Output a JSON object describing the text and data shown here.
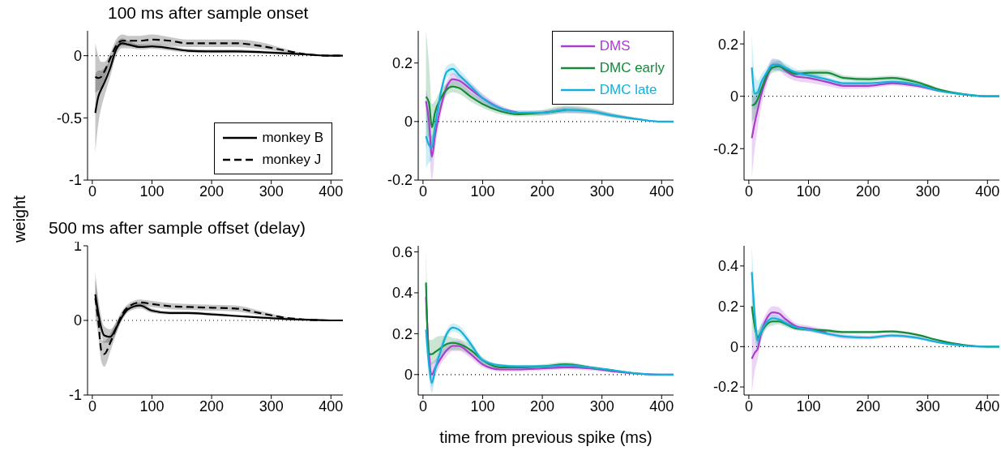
{
  "chart_data": [
    {
      "type": "line",
      "title": "100 ms after sample onset",
      "ylabel": "weight",
      "x": [
        5,
        10,
        15,
        20,
        30,
        40,
        50,
        60,
        80,
        100,
        130,
        160,
        200,
        240,
        280,
        320,
        360,
        400,
        420
      ],
      "xlim": [
        -8,
        420
      ],
      "xticks": [
        0,
        100,
        200,
        300,
        400
      ],
      "ylim": [
        -1,
        0.2
      ],
      "yticks": [
        -1,
        -0.5,
        0
      ],
      "legend": "bottom right",
      "marker": "none",
      "ref_lines": [
        {
          "axis": "y",
          "value": 0,
          "line_style": "dotted",
          "color": "#000000"
        }
      ],
      "series": [
        {
          "name": "monkey B",
          "color": "#000000",
          "line_style": "solid",
          "values": [
            -0.46,
            -0.33,
            -0.27,
            -0.22,
            -0.1,
            0.05,
            0.1,
            0.09,
            0.07,
            0.075,
            0.06,
            0.04,
            0.035,
            0.035,
            0.03,
            0.02,
            0.01,
            0,
            0
          ],
          "lower": [
            -0.78,
            -0.55,
            -0.42,
            -0.33,
            -0.17,
            0.0,
            0.06,
            0.06,
            0.05,
            0.055,
            0.04,
            0.025,
            0.02,
            0.02,
            0.018,
            0.01,
            0.005,
            0,
            0
          ],
          "upper": [
            -0.15,
            -0.12,
            -0.12,
            -0.1,
            -0.03,
            0.1,
            0.14,
            0.12,
            0.09,
            0.095,
            0.08,
            0.055,
            0.05,
            0.05,
            0.042,
            0.03,
            0.015,
            0,
            0
          ]
        },
        {
          "name": "monkey J",
          "color": "#000000",
          "line_style": "dashed",
          "values": [
            -0.17,
            -0.18,
            -0.17,
            -0.13,
            -0.02,
            0.08,
            0.12,
            0.12,
            0.12,
            0.13,
            0.12,
            0.1,
            0.1,
            0.1,
            0.08,
            0.045,
            0.01,
            0,
            0
          ],
          "lower": [
            -0.3,
            -0.28,
            -0.26,
            -0.2,
            -0.06,
            0.04,
            0.08,
            0.08,
            0.08,
            0.09,
            0.08,
            0.07,
            0.07,
            0.07,
            0.055,
            0.03,
            0.005,
            0,
            0
          ],
          "upper": [
            0.1,
            0.0,
            -0.05,
            -0.05,
            0.02,
            0.13,
            0.17,
            0.16,
            0.16,
            0.17,
            0.15,
            0.13,
            0.13,
            0.13,
            0.11,
            0.06,
            0.015,
            0,
            0
          ]
        }
      ]
    },
    {
      "type": "line",
      "x": [
        5,
        10,
        15,
        20,
        30,
        40,
        50,
        60,
        80,
        100,
        130,
        160,
        200,
        240,
        280,
        320,
        360,
        400,
        420
      ],
      "xlim": [
        -8,
        420
      ],
      "xticks": [
        0,
        100,
        200,
        300,
        400
      ],
      "ylim": [
        -0.2,
        0.31
      ],
      "yticks": [
        -0.2,
        0,
        0.2
      ],
      "legend": "top right",
      "marker": "none",
      "ref_lines": [
        {
          "axis": "y",
          "value": 0,
          "line_style": "dotted",
          "color": "#000000"
        }
      ],
      "series": [
        {
          "name": "DMS",
          "color": "#a83fcc",
          "values": [
            0.07,
            0.0,
            -0.12,
            -0.05,
            0.05,
            0.12,
            0.145,
            0.14,
            0.11,
            0.08,
            0.045,
            0.03,
            null,
            null,
            null,
            null,
            null,
            null,
            null
          ],
          "lower": [
            0.03,
            -0.08,
            -0.2,
            -0.1,
            0.02,
            0.1,
            0.125,
            0.12,
            0.09,
            0.065,
            0.035,
            0.022,
            0.022,
            0.03,
            0.027,
            0.014,
            0.005,
            0,
            0
          ],
          "upper": [
            0.11,
            0.06,
            -0.05,
            0.0,
            0.08,
            0.14,
            0.165,
            0.16,
            0.13,
            0.095,
            0.055,
            0.038,
            0.038,
            0.05,
            0.043,
            0.026,
            0.011,
            0,
            0
          ]
        },
        {
          "name": "DMC early",
          "color": "#148a3a",
          "values": [
            0.085,
            0.065,
            -0.02,
            0.03,
            0.08,
            0.11,
            0.12,
            0.115,
            0.085,
            0.06,
            0.035,
            0.025,
            0.03,
            0.04,
            null,
            null,
            null,
            null,
            null
          ],
          "lower": [
            -0.1,
            -0.05,
            -0.08,
            -0.01,
            0.05,
            0.09,
            0.1,
            0.095,
            0.068,
            0.047,
            0.025,
            0.017,
            0.02,
            0.028,
            0.025,
            0.013,
            0.004,
            0,
            0
          ],
          "upper": [
            0.31,
            0.2,
            0.06,
            0.07,
            0.11,
            0.13,
            0.14,
            0.135,
            0.102,
            0.073,
            0.045,
            0.033,
            0.04,
            0.055,
            0.047,
            0.028,
            0.012,
            0,
            0
          ]
        },
        {
          "name": "DMC late",
          "color": "#14b0dc",
          "values": [
            -0.05,
            -0.08,
            -0.09,
            -0.02,
            0.1,
            0.17,
            0.18,
            0.16,
            0.12,
            0.08,
            0.045,
            0.03,
            0.03,
            0.04,
            0.035,
            0.02,
            0.008,
            0,
            0
          ],
          "lower": [
            -0.16,
            -0.14,
            -0.13,
            -0.05,
            0.08,
            0.15,
            0.16,
            0.14,
            0.105,
            0.068,
            0.037,
            0.023,
            0.023,
            0.032,
            0.028,
            0.015,
            0.005,
            0,
            0
          ],
          "upper": [
            0.05,
            -0.02,
            -0.05,
            0.01,
            0.12,
            0.19,
            0.2,
            0.18,
            0.135,
            0.092,
            0.053,
            0.037,
            0.037,
            0.048,
            0.042,
            0.025,
            0.011,
            0,
            0
          ]
        }
      ]
    },
    {
      "type": "line",
      "x": [
        5,
        10,
        15,
        20,
        30,
        40,
        50,
        60,
        80,
        100,
        130,
        160,
        200,
        240,
        280,
        320,
        360,
        400,
        420
      ],
      "xlim": [
        -8,
        420
      ],
      "xticks": [
        0,
        100,
        200,
        300,
        400
      ],
      "ylim": [
        -0.32,
        0.25
      ],
      "yticks": [
        -0.2,
        0,
        0.2
      ],
      "marker": "none",
      "ref_lines": [
        {
          "axis": "y",
          "value": 0,
          "line_style": "dotted",
          "color": "#000000"
        }
      ],
      "series": [
        {
          "color": "#a83fcc",
          "values": [
            -0.16,
            -0.1,
            -0.05,
            0.0,
            0.07,
            0.12,
            0.12,
            0.1,
            0.075,
            0.07,
            0.055,
            0.04,
            0.04,
            0.05,
            0.04,
            0.02,
            null,
            null,
            null
          ],
          "lower": [
            -0.31,
            -0.2,
            -0.12,
            -0.05,
            0.04,
            0.1,
            0.1,
            0.08,
            0.058,
            0.052,
            0.04,
            0.028,
            0.03,
            0.04,
            0.032,
            0.015,
            0.004,
            0,
            0
          ],
          "upper": [
            0.0,
            0.0,
            0.02,
            0.05,
            0.1,
            0.145,
            0.14,
            0.12,
            0.092,
            0.088,
            0.07,
            0.052,
            0.05,
            0.06,
            0.048,
            0.025,
            0.01,
            0,
            0
          ]
        },
        {
          "color": "#148a3a",
          "values": [
            -0.035,
            -0.03,
            -0.01,
            0.02,
            0.08,
            0.11,
            0.115,
            0.105,
            0.085,
            0.09,
            0.09,
            0.07,
            0.065,
            0.07,
            0.055,
            0.025,
            0.008,
            0,
            0
          ],
          "lower": [
            -0.1,
            -0.08,
            -0.05,
            -0.01,
            0.06,
            0.09,
            0.095,
            0.09,
            0.072,
            0.078,
            0.078,
            0.06,
            0.056,
            0.061,
            0.047,
            0.02,
            0.005,
            0,
            0
          ],
          "upper": [
            0.03,
            0.02,
            0.03,
            0.05,
            0.1,
            0.13,
            0.135,
            0.12,
            0.098,
            0.102,
            0.102,
            0.08,
            0.074,
            0.079,
            0.063,
            0.03,
            0.011,
            0,
            0
          ]
        },
        {
          "color": "#14b0dc",
          "values": [
            0.11,
            0.01,
            0.015,
            0.05,
            0.09,
            0.12,
            0.12,
            0.11,
            0.09,
            0.08,
            0.065,
            0.05,
            0.05,
            0.055,
            0.045,
            0.02,
            0.007,
            0,
            0
          ],
          "lower": [
            0.0,
            -0.05,
            -0.03,
            0.02,
            0.07,
            0.1,
            0.1,
            0.092,
            0.077,
            0.068,
            0.055,
            0.042,
            0.043,
            0.048,
            0.038,
            0.016,
            0.004,
            0,
            0
          ],
          "upper": [
            0.24,
            0.08,
            0.06,
            0.08,
            0.11,
            0.14,
            0.14,
            0.128,
            0.103,
            0.092,
            0.075,
            0.058,
            0.057,
            0.062,
            0.052,
            0.024,
            0.01,
            0,
            0
          ]
        }
      ]
    },
    {
      "type": "line",
      "title": "500 ms after sample offset (delay)",
      "x": [
        5,
        10,
        15,
        20,
        30,
        40,
        50,
        60,
        80,
        100,
        130,
        160,
        200,
        240,
        280,
        320,
        360,
        400,
        420
      ],
      "xlim": [
        -8,
        420
      ],
      "xticks": [
        0,
        100,
        200,
        300,
        400
      ],
      "ylim": [
        -1,
        1
      ],
      "yticks": [
        -1,
        0,
        1
      ],
      "marker": "none",
      "ref_lines": [
        {
          "axis": "y",
          "value": 0,
          "line_style": "dotted",
          "color": "#000000"
        }
      ],
      "series": [
        {
          "color": "#000000",
          "line_style": "solid",
          "values": [
            0.35,
            0.1,
            -0.1,
            -0.2,
            -0.22,
            -0.1,
            0.05,
            0.15,
            0.2,
            0.13,
            0.1,
            0.1,
            0.08,
            0.06,
            0.04,
            0.02,
            0.01,
            0,
            0
          ],
          "lower": [
            0.15,
            -0.05,
            -0.2,
            -0.3,
            -0.3,
            -0.17,
            0.0,
            0.11,
            0.16,
            0.1,
            0.08,
            0.08,
            0.067,
            0.046,
            0.026,
            0.01,
            0.003,
            0,
            0
          ],
          "upper": [
            0.65,
            0.3,
            0.05,
            -0.08,
            -0.12,
            -0.03,
            0.1,
            0.19,
            0.24,
            0.16,
            0.12,
            0.12,
            0.103,
            0.074,
            0.044,
            0.02,
            0.007,
            0,
            0
          ]
        },
        {
          "color": "#000000",
          "line_style": "dashed",
          "values": [
            0.3,
            0.0,
            -0.4,
            -0.45,
            -0.3,
            -0.1,
            0.08,
            0.18,
            0.24,
            0.22,
            0.19,
            0.18,
            0.17,
            0.16,
            0.1,
            0.04,
            0.01,
            0,
            0
          ],
          "lower": [
            0.05,
            -0.2,
            -0.55,
            -0.62,
            -0.42,
            -0.18,
            0.03,
            0.14,
            0.2,
            0.18,
            0.15,
            0.14,
            0.13,
            0.12,
            0.07,
            0.025,
            0.005,
            0,
            0
          ],
          "upper": [
            0.55,
            0.2,
            -0.25,
            -0.28,
            -0.18,
            -0.02,
            0.13,
            0.22,
            0.28,
            0.26,
            0.23,
            0.22,
            0.21,
            0.2,
            0.13,
            0.055,
            0.015,
            0,
            0
          ]
        }
      ]
    },
    {
      "type": "line",
      "xlabel": "time from previous spike (ms)",
      "x": [
        5,
        10,
        15,
        20,
        30,
        40,
        50,
        60,
        80,
        100,
        130,
        160,
        200,
        240,
        280,
        320,
        360,
        400,
        420
      ],
      "xlim": [
        -8,
        420
      ],
      "xticks": [
        0,
        100,
        200,
        300,
        400
      ],
      "ylim": [
        -0.1,
        0.63
      ],
      "yticks": [
        0,
        0.2,
        0.4,
        0.6
      ],
      "marker": "none",
      "ref_lines": [
        {
          "axis": "y",
          "value": 0,
          "line_style": "dotted",
          "color": "#000000"
        }
      ],
      "series": [
        {
          "color": "#a83fcc",
          "values": [
            0.38,
            0.1,
            0.0,
            0.03,
            0.08,
            0.12,
            0.14,
            0.14,
            0.1,
            0.05,
            0.025,
            0.025,
            0.03,
            0.035,
            0.03,
            0.015,
            0.005,
            0,
            0
          ],
          "lower": [
            0.3,
            0.04,
            -0.06,
            -0.01,
            0.05,
            0.09,
            0.115,
            0.115,
            0.08,
            0.035,
            0.015,
            0.015,
            0.02,
            0.025,
            0.02,
            0.01,
            0.002,
            0,
            0
          ],
          "upper": [
            0.46,
            0.16,
            0.06,
            0.07,
            0.11,
            0.15,
            0.165,
            0.165,
            0.12,
            0.065,
            0.035,
            0.035,
            0.04,
            0.045,
            0.04,
            0.02,
            0.008,
            0,
            0
          ]
        },
        {
          "color": "#148a3a",
          "values": [
            0.45,
            0.1,
            0.1,
            0.11,
            0.13,
            0.15,
            0.155,
            0.15,
            0.12,
            0.07,
            0.035,
            0.035,
            0.04,
            0.05,
            0.035,
            0.02,
            null,
            null,
            null
          ],
          "lower": [
            0.3,
            0.03,
            0.05,
            0.06,
            0.09,
            0.11,
            0.12,
            0.12,
            0.095,
            0.055,
            0.025,
            0.025,
            0.03,
            0.038,
            0.027,
            0.014,
            0.002,
            0,
            0
          ],
          "upper": [
            0.62,
            0.17,
            0.17,
            0.18,
            0.19,
            0.19,
            0.18,
            0.175,
            0.145,
            0.085,
            0.045,
            0.045,
            0.05,
            0.062,
            0.043,
            0.026,
            0.008,
            0,
            0
          ]
        },
        {
          "color": "#14b0dc",
          "values": [
            0.22,
            0.05,
            -0.04,
            0.02,
            0.12,
            0.2,
            0.23,
            0.22,
            0.15,
            0.07,
            0.045,
            0.04,
            0.04,
            0.045,
            0.035,
            0.02,
            0.005,
            0,
            0
          ],
          "lower": [
            0.15,
            -0.02,
            -0.09,
            -0.02,
            0.09,
            0.18,
            0.21,
            0.2,
            0.13,
            0.058,
            0.037,
            0.033,
            0.033,
            0.037,
            0.028,
            0.015,
            0.002,
            0,
            0
          ],
          "upper": [
            0.29,
            0.12,
            0.01,
            0.06,
            0.15,
            0.22,
            0.25,
            0.24,
            0.17,
            0.082,
            0.053,
            0.047,
            0.047,
            0.053,
            0.042,
            0.025,
            0.008,
            0,
            0
          ]
        }
      ]
    },
    {
      "type": "line",
      "x": [
        5,
        10,
        15,
        20,
        30,
        40,
        50,
        60,
        80,
        100,
        130,
        160,
        200,
        240,
        280,
        320,
        360,
        400,
        420
      ],
      "xlim": [
        -8,
        420
      ],
      "xticks": [
        0,
        100,
        200,
        300,
        400
      ],
      "ylim": [
        -0.24,
        0.5
      ],
      "yticks": [
        -0.2,
        0,
        0.2,
        0.4
      ],
      "marker": "none",
      "ref_lines": [
        {
          "axis": "y",
          "value": 0,
          "line_style": "dotted",
          "color": "#000000"
        }
      ],
      "series": [
        {
          "color": "#a83fcc",
          "values": [
            -0.06,
            -0.03,
            -0.01,
            0.06,
            0.14,
            0.17,
            0.165,
            0.14,
            0.1,
            0.09,
            0.07,
            null,
            null,
            null,
            null,
            null,
            null,
            null,
            null
          ],
          "lower": [
            -0.23,
            -0.12,
            -0.06,
            0.02,
            0.11,
            0.14,
            0.135,
            0.115,
            0.085,
            0.075,
            0.055,
            0.038,
            0.035,
            0.045,
            0.037,
            0.015,
            0.002,
            0,
            0
          ],
          "upper": [
            0.1,
            0.05,
            0.04,
            0.1,
            0.17,
            0.2,
            0.195,
            0.165,
            0.115,
            0.105,
            0.085,
            0.062,
            0.055,
            0.065,
            0.053,
            0.025,
            0.008,
            0,
            0
          ]
        },
        {
          "color": "#148a3a",
          "values": [
            0.2,
            0.1,
            0.045,
            0.07,
            0.11,
            0.125,
            0.125,
            0.115,
            0.09,
            0.085,
            0.08,
            0.072,
            0.072,
            0.075,
            0.06,
            0.03,
            0.008,
            0,
            0
          ],
          "lower": [
            0.1,
            0.05,
            0.01,
            0.04,
            0.09,
            0.105,
            0.11,
            0.1,
            0.08,
            0.077,
            0.072,
            0.065,
            0.065,
            0.068,
            0.054,
            0.026,
            0.005,
            0,
            0
          ],
          "upper": [
            0.3,
            0.15,
            0.08,
            0.1,
            0.13,
            0.145,
            0.14,
            0.13,
            0.1,
            0.093,
            0.088,
            0.079,
            0.079,
            0.082,
            0.066,
            0.034,
            0.011,
            0,
            0
          ]
        },
        {
          "color": "#14b0dc",
          "values": [
            0.37,
            0.15,
            0.03,
            0.07,
            0.12,
            0.14,
            0.135,
            0.12,
            0.095,
            0.085,
            0.065,
            0.05,
            0.045,
            0.055,
            0.045,
            0.02,
            0.005,
            0,
            0
          ],
          "lower": [
            0.25,
            0.05,
            -0.02,
            0.03,
            0.1,
            0.12,
            0.118,
            0.105,
            0.085,
            0.077,
            0.058,
            0.044,
            0.04,
            0.049,
            0.039,
            0.016,
            0.002,
            0,
            0
          ],
          "upper": [
            0.5,
            0.25,
            0.08,
            0.11,
            0.14,
            0.16,
            0.152,
            0.135,
            0.105,
            0.093,
            0.072,
            0.056,
            0.05,
            0.061,
            0.051,
            0.024,
            0.008,
            0,
            0
          ]
        }
      ]
    }
  ]
}
